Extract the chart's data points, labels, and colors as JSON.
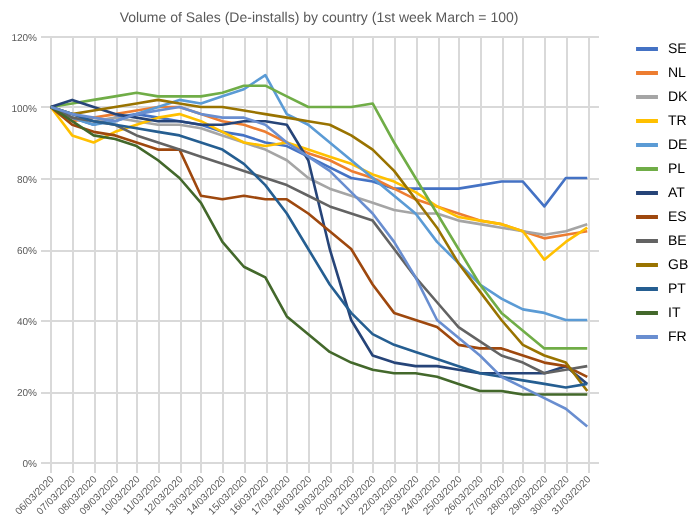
{
  "chart_data": {
    "type": "line",
    "title": "Volume of Sales (De-installs) by country (1st week March = 100)",
    "categories": [
      "06/03/2020",
      "07/03/2020",
      "08/03/2020",
      "09/03/2020",
      "10/03/2020",
      "11/03/2020",
      "12/03/2020",
      "13/03/2020",
      "14/03/2020",
      "15/03/2020",
      "16/03/2020",
      "17/03/2020",
      "18/03/2020",
      "19/03/2020",
      "20/03/2020",
      "21/03/2020",
      "22/03/2020",
      "23/03/2020",
      "24/03/2020",
      "25/03/2020",
      "26/03/2020",
      "27/03/2020",
      "28/03/2020",
      "29/03/2020",
      "30/03/2020",
      "31/03/2020"
    ],
    "series": [
      {
        "name": "SE",
        "color": "#4472c4",
        "values": [
          100,
          97,
          95,
          97,
          98,
          97,
          96,
          95,
          93,
          92,
          90,
          89,
          86,
          83,
          80,
          79,
          77,
          77,
          77,
          77,
          78,
          79,
          79,
          72,
          80,
          80
        ]
      },
      {
        "name": "NL",
        "color": "#ed7d31",
        "values": [
          100,
          96,
          97,
          98,
          99,
          100,
          100,
          98,
          96,
          95,
          93,
          90,
          87,
          85,
          82,
          80,
          77,
          74,
          72,
          70,
          68,
          67,
          65,
          63,
          64,
          65
        ]
      },
      {
        "name": "DK",
        "color": "#a5a5a5",
        "values": [
          100,
          98,
          96,
          97,
          96,
          95,
          95,
          94,
          92,
          90,
          88,
          85,
          80,
          77,
          75,
          73,
          71,
          70,
          70,
          68,
          67,
          66,
          65,
          64,
          65,
          67
        ]
      },
      {
        "name": "TR",
        "color": "#ffc000",
        "values": [
          100,
          92,
          90,
          93,
          95,
          97,
          98,
          96,
          93,
          90,
          89,
          90,
          88,
          86,
          84,
          81,
          79,
          76,
          72,
          69,
          68,
          67,
          65,
          57,
          62,
          66
        ]
      },
      {
        "name": "DE",
        "color": "#5b9bd5",
        "values": [
          100,
          97,
          95,
          96,
          98,
          100,
          102,
          101,
          103,
          105,
          109,
          98,
          95,
          90,
          85,
          80,
          75,
          70,
          62,
          56,
          50,
          46,
          43,
          42,
          40,
          40
        ]
      },
      {
        "name": "PL",
        "color": "#70ad47",
        "values": [
          100,
          101,
          102,
          103,
          104,
          103,
          103,
          103,
          104,
          106,
          106,
          103,
          100,
          100,
          100,
          101,
          90,
          80,
          70,
          60,
          50,
          42,
          37,
          32,
          32,
          32
        ]
      },
      {
        "name": "AT",
        "color": "#264478",
        "values": [
          100,
          102,
          100,
          98,
          97,
          96,
          96,
          95,
          95,
          96,
          96,
          95,
          85,
          60,
          40,
          30,
          28,
          27,
          27,
          26,
          25,
          25,
          25,
          25,
          27,
          22
        ]
      },
      {
        "name": "ES",
        "color": "#9e480e",
        "values": [
          100,
          95,
          93,
          92,
          90,
          88,
          88,
          75,
          74,
          75,
          74,
          74,
          70,
          65,
          60,
          50,
          42,
          40,
          38,
          33,
          32,
          32,
          30,
          28,
          27,
          24
        ]
      },
      {
        "name": "BE",
        "color": "#636363",
        "values": [
          100,
          97,
          96,
          95,
          92,
          90,
          88,
          86,
          84,
          82,
          80,
          78,
          75,
          72,
          70,
          68,
          60,
          52,
          45,
          38,
          34,
          30,
          28,
          25,
          26,
          27
        ]
      },
      {
        "name": "GB",
        "color": "#997300",
        "values": [
          100,
          98,
          99,
          100,
          101,
          102,
          101,
          100,
          100,
          99,
          98,
          97,
          96,
          95,
          92,
          88,
          82,
          74,
          66,
          56,
          48,
          40,
          33,
          30,
          28,
          20
        ]
      },
      {
        "name": "PT",
        "color": "#255e91",
        "values": [
          100,
          98,
          96,
          95,
          94,
          93,
          92,
          90,
          88,
          84,
          78,
          70,
          60,
          50,
          42,
          36,
          33,
          31,
          29,
          27,
          25,
          24,
          23,
          22,
          21,
          22
        ]
      },
      {
        "name": "IT",
        "color": "#43682b",
        "values": [
          100,
          96,
          92,
          91,
          89,
          85,
          80,
          73,
          62,
          55,
          52,
          41,
          36,
          31,
          28,
          26,
          25,
          25,
          24,
          22,
          20,
          20,
          19,
          19,
          19,
          19
        ]
      },
      {
        "name": "FR",
        "color": "#698ed0",
        "values": [
          100,
          98,
          97,
          96,
          98,
          99,
          100,
          98,
          97,
          97,
          95,
          90,
          86,
          82,
          76,
          70,
          62,
          52,
          40,
          35,
          30,
          24,
          21,
          18,
          15,
          10
        ]
      }
    ],
    "ylim": [
      0,
      120
    ],
    "yticks": [
      {
        "value": 0,
        "label": "0%"
      },
      {
        "value": 20,
        "label": "20%"
      },
      {
        "value": 40,
        "label": "40%"
      },
      {
        "value": 60,
        "label": "60%"
      },
      {
        "value": 80,
        "label": "80%"
      },
      {
        "value": 100,
        "label": "100%"
      },
      {
        "value": 120,
        "label": "120%"
      }
    ],
    "grid": true,
    "legend": "right",
    "marker": "none",
    "line_style": "solid"
  }
}
